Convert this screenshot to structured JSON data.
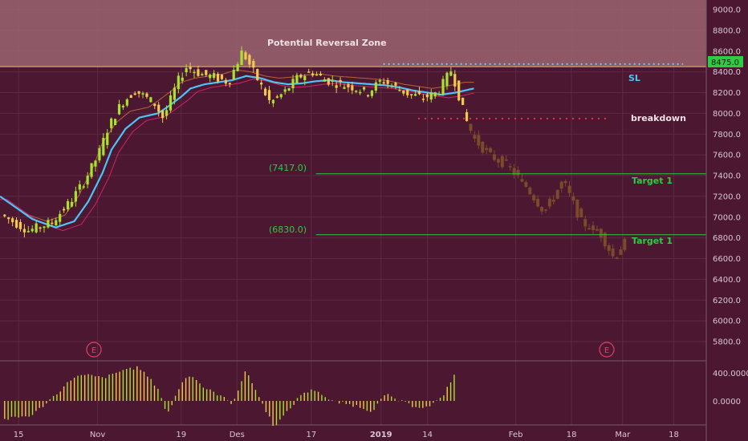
{
  "chart_data": {
    "type": "candlestick",
    "y_axis": {
      "ticks": [
        "9000.0",
        "8800.0",
        "8600.0",
        "8400.0",
        "8200.0",
        "8000.0",
        "7800.0",
        "7600.0",
        "7400.0",
        "7200.0",
        "7000.0",
        "6800.0",
        "6600.0",
        "6400.0",
        "6200.0",
        "6000.0",
        "5800.0"
      ],
      "ylim": [
        5700,
        9100
      ],
      "current_price_label": "8475.0"
    },
    "x_axis": {
      "ticks": [
        {
          "label": "15",
          "day": 0
        },
        {
          "label": "Nov",
          "day": 17
        },
        {
          "label": "19",
          "day": 35
        },
        {
          "label": "Des",
          "day": 47
        },
        {
          "label": "17",
          "day": 63
        },
        {
          "label": "2019",
          "day": 78
        },
        {
          "label": "14",
          "day": 88
        },
        {
          "label": "Feb",
          "day": 107
        },
        {
          "label": "18",
          "day": 119
        },
        {
          "label": "Mar",
          "day": 130
        },
        {
          "label": "18",
          "day": 141
        }
      ],
      "xlim": [
        -4,
        148
      ]
    },
    "colors": {
      "up": "#a6e22e",
      "down": "#f2c94c",
      "projection": "#7a4a2a",
      "ema_main": "#4fc3f7",
      "ema_fast": "#b5653b",
      "ema_slow": "#d0246a",
      "target_line": "#2ecc40",
      "sl_line": "#5fd3e8",
      "breakdown_line": "#ff2a2a",
      "zone": "#9a6470"
    },
    "key_series": {
      "price_x": [
        -4,
        3,
        8,
        12,
        15,
        18,
        20,
        23,
        26,
        30,
        32,
        35,
        37,
        40,
        43,
        46,
        49,
        52,
        55,
        58,
        61,
        64,
        67,
        70,
        73,
        76,
        79,
        82,
        85,
        88,
        91,
        94,
        97,
        99,
        102,
        106,
        110,
        114,
        118,
        122,
        126,
        129,
        131
      ],
      "price": [
        7050,
        6870,
        6950,
        7150,
        7350,
        7600,
        7850,
        8100,
        8220,
        8100,
        7950,
        8300,
        8450,
        8380,
        8350,
        8300,
        8600,
        8350,
        8100,
        8200,
        8350,
        8400,
        8320,
        8280,
        8250,
        8200,
        8320,
        8250,
        8180,
        8150,
        8200,
        8420,
        7950,
        7750,
        7600,
        7500,
        7300,
        7050,
        7350,
        6950,
        6850,
        6600,
        6750
      ],
      "projection_start_day": 97,
      "ema_x": [
        -4,
        3,
        8,
        12,
        15,
        18,
        20,
        23,
        26,
        30,
        32,
        35,
        37,
        40,
        43,
        46,
        49,
        52,
        55,
        58,
        61,
        64,
        67,
        70,
        73,
        76,
        79,
        82,
        85,
        88,
        91,
        94,
        98
      ],
      "ema": [
        7200,
        6980,
        6900,
        6960,
        7150,
        7420,
        7650,
        7850,
        7960,
        8000,
        8060,
        8160,
        8240,
        8280,
        8300,
        8320,
        8360,
        8340,
        8300,
        8280,
        8290,
        8310,
        8320,
        8300,
        8290,
        8280,
        8270,
        8250,
        8220,
        8200,
        8180,
        8200,
        8240
      ]
    },
    "levels": [
      {
        "name": "Potential Reversal Zone",
        "from": 8450,
        "to": 9100
      },
      {
        "name": "SL",
        "value": 8475
      },
      {
        "name": "breakdown",
        "value": 7950
      },
      {
        "name": "Target 1",
        "value": 7417,
        "label": "(7417.0)"
      },
      {
        "name": "Target 1",
        "value": 6830,
        "label": "(6830.0)"
      }
    ],
    "oscillator": {
      "ticks": [
        "400.0000",
        "0.0000"
      ]
    },
    "annotations": {
      "zone_title": "Potential Reversal Zone",
      "sl": "SL",
      "breakdown": "breakdown",
      "target1_upper": "Target 1",
      "target1_lower": "Target 1",
      "level_upper": "(7417.0)",
      "level_lower": "(6830.0)",
      "earnings_marker": "E"
    }
  }
}
